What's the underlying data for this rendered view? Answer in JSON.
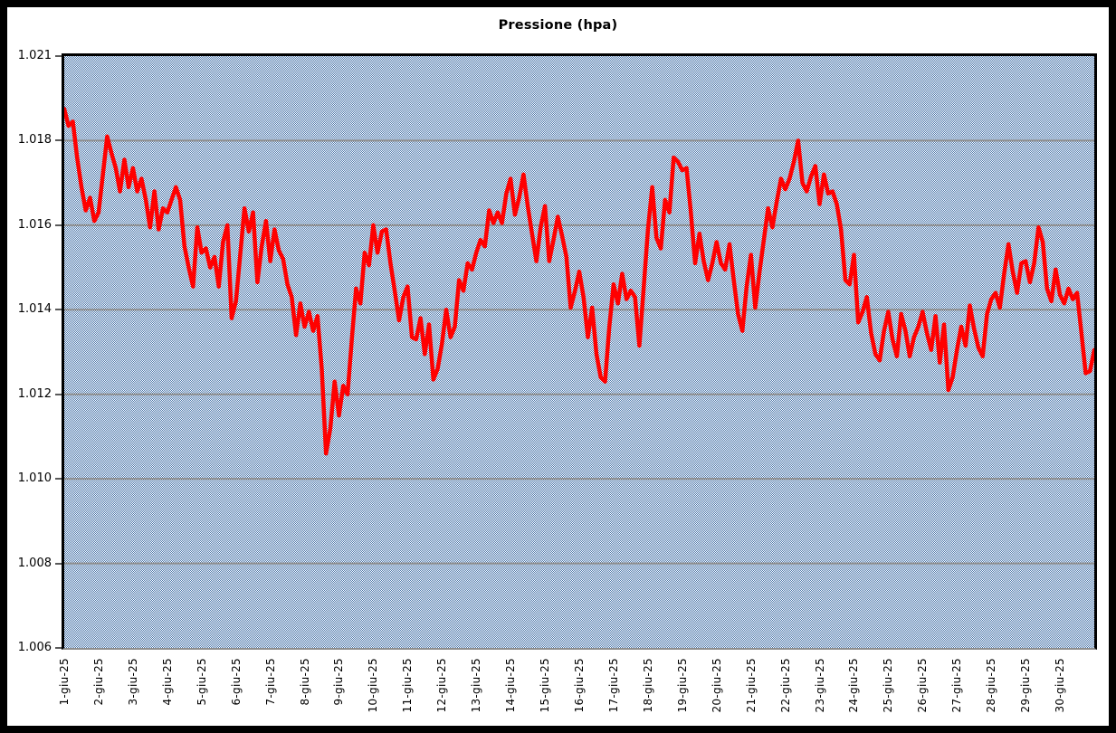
{
  "colors": {
    "series_line": "#ff0000",
    "gridline": "#8e8e8e",
    "axis": "#000000",
    "frame_border": "#000000",
    "plot_pattern_blue": "#4a76ab",
    "plot_pattern_white": "#ffffff",
    "background": "#ffffff"
  },
  "chart_data": {
    "type": "line",
    "title": "Pressione (hpa)",
    "xlabel": "",
    "ylabel": "",
    "legend": "none",
    "grid": "horizontal gridlines every 2 hPa",
    "y_axis": {
      "tick_labels": [
        "1.021",
        "1.018",
        "1.016",
        "1.014",
        "1.012",
        "1.010",
        "1.008",
        "1.006"
      ],
      "tick_values": [
        1021,
        1018,
        1016,
        1014,
        1012,
        1010,
        1008,
        1006
      ],
      "gridline_values": [
        1018,
        1016,
        1014,
        1012,
        1010,
        1008
      ],
      "plot_top_value": 1020,
      "plot_bottom_value": 1006,
      "number_format": "Italian thousands separator (1.016 = 1016 hPa)"
    },
    "x_axis": {
      "tick_labels": [
        "1-giu-25",
        "2-giu-25",
        "3-giu-25",
        "4-giu-25",
        "5-giu-25",
        "6-giu-25",
        "7-giu-25",
        "8-giu-25",
        "9-giu-25",
        "10-giu-25",
        "11-giu-25",
        "12-giu-25",
        "13-giu-25",
        "14-giu-25",
        "15-giu-25",
        "16-giu-25",
        "17-giu-25",
        "18-giu-25",
        "19-giu-25",
        "20-giu-25",
        "21-giu-25",
        "22-giu-25",
        "23-giu-25",
        "24-giu-25",
        "25-giu-25",
        "26-giu-25",
        "27-giu-25",
        "28-giu-25",
        "29-giu-25",
        "30-giu-25"
      ],
      "label_rotation_deg": 90
    },
    "points_per_day": 8,
    "sampling_note": "pressure in hPa estimated every 3 hours, 1-30 June 2025",
    "values": [
      1018.75,
      1018.35,
      1018.45,
      1017.6,
      1016.9,
      1016.35,
      1016.65,
      1016.1,
      1016.3,
      1017.2,
      1018.1,
      1017.7,
      1017.35,
      1016.8,
      1017.55,
      1016.9,
      1017.35,
      1016.8,
      1017.1,
      1016.6,
      1015.95,
      1016.8,
      1015.9,
      1016.4,
      1016.3,
      1016.6,
      1016.9,
      1016.6,
      1015.5,
      1015.0,
      1014.55,
      1015.95,
      1015.35,
      1015.45,
      1015.0,
      1015.25,
      1014.55,
      1015.6,
      1016.0,
      1013.8,
      1014.2,
      1015.3,
      1016.4,
      1015.85,
      1016.3,
      1014.65,
      1015.5,
      1016.1,
      1015.15,
      1015.9,
      1015.4,
      1015.2,
      1014.6,
      1014.3,
      1013.4,
      1014.15,
      1013.6,
      1013.95,
      1013.5,
      1013.85,
      1012.6,
      1010.6,
      1011.2,
      1012.3,
      1011.5,
      1012.2,
      1012.0,
      1013.3,
      1014.5,
      1014.15,
      1015.35,
      1015.05,
      1016.0,
      1015.35,
      1015.85,
      1015.9,
      1015.1,
      1014.45,
      1013.75,
      1014.3,
      1014.55,
      1013.35,
      1013.3,
      1013.8,
      1012.95,
      1013.65,
      1012.35,
      1012.6,
      1013.2,
      1014.0,
      1013.35,
      1013.6,
      1014.7,
      1014.45,
      1015.1,
      1014.95,
      1015.35,
      1015.65,
      1015.5,
      1016.35,
      1016.05,
      1016.3,
      1016.05,
      1016.75,
      1017.1,
      1016.25,
      1016.65,
      1017.2,
      1016.45,
      1015.8,
      1015.15,
      1015.95,
      1016.45,
      1015.15,
      1015.65,
      1016.2,
      1015.75,
      1015.25,
      1014.05,
      1014.45,
      1014.9,
      1014.3,
      1013.35,
      1014.05,
      1012.95,
      1012.4,
      1012.3,
      1013.6,
      1014.6,
      1014.15,
      1014.85,
      1014.25,
      1014.45,
      1014.3,
      1013.15,
      1014.5,
      1015.9,
      1016.9,
      1015.7,
      1015.45,
      1016.6,
      1016.3,
      1017.6,
      1017.5,
      1017.3,
      1017.35,
      1016.3,
      1015.1,
      1015.8,
      1015.15,
      1014.7,
      1015.1,
      1015.6,
      1015.1,
      1014.95,
      1015.55,
      1014.7,
      1013.9,
      1013.5,
      1014.55,
      1015.3,
      1014.05,
      1014.9,
      1015.65,
      1016.4,
      1015.95,
      1016.55,
      1017.1,
      1016.85,
      1017.1,
      1017.5,
      1018.0,
      1017.0,
      1016.8,
      1017.15,
      1017.4,
      1016.5,
      1017.2,
      1016.75,
      1016.8,
      1016.5,
      1015.9,
      1014.7,
      1014.6,
      1015.3,
      1013.7,
      1013.95,
      1014.3,
      1013.45,
      1012.95,
      1012.8,
      1013.5,
      1013.95,
      1013.3,
      1012.9,
      1013.9,
      1013.5,
      1012.9,
      1013.35,
      1013.6,
      1013.95,
      1013.45,
      1013.05,
      1013.85,
      1012.75,
      1013.65,
      1012.1,
      1012.4,
      1013.05,
      1013.6,
      1013.15,
      1014.1,
      1013.55,
      1013.1,
      1012.9,
      1013.9,
      1014.25,
      1014.4,
      1014.05,
      1014.85,
      1015.55,
      1014.9,
      1014.4,
      1015.1,
      1015.15,
      1014.65,
      1015.1,
      1015.95,
      1015.6,
      1014.5,
      1014.2,
      1014.95,
      1014.35,
      1014.15,
      1014.5,
      1014.25,
      1014.4,
      1013.45,
      1012.5,
      1012.55,
      1013.05
    ]
  }
}
